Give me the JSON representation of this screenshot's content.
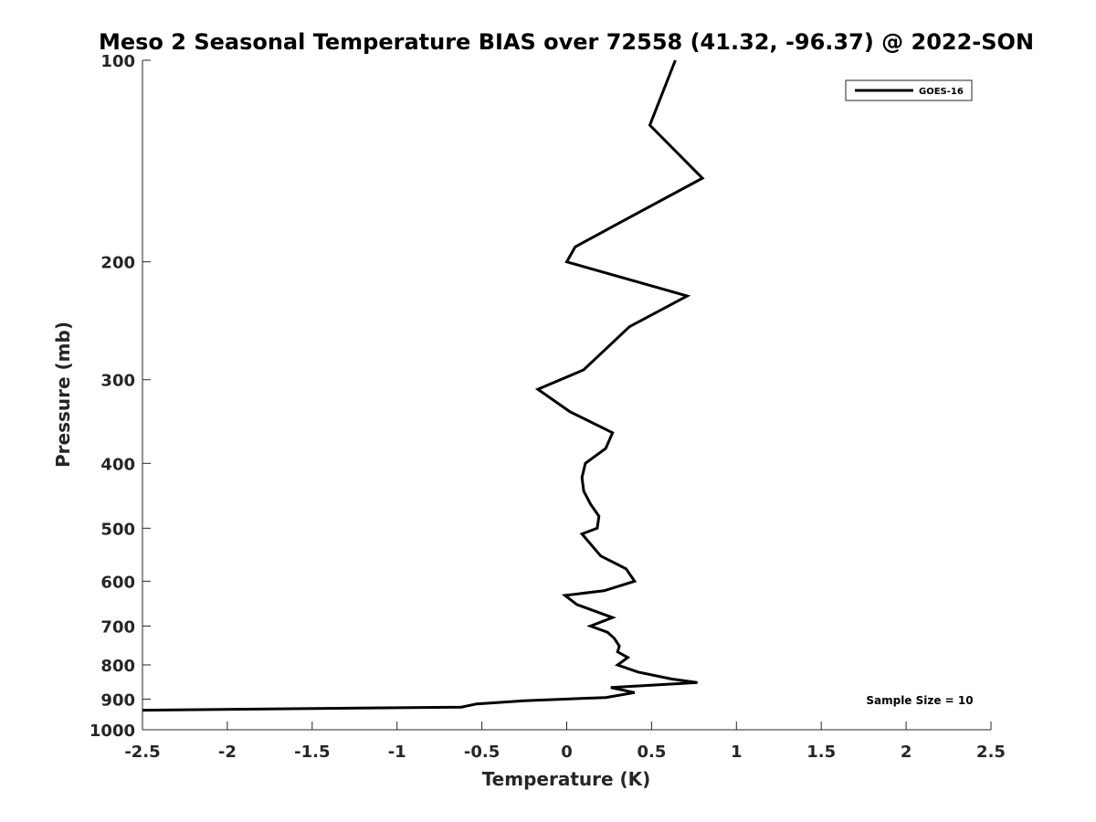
{
  "chart_data": {
    "type": "line",
    "title": "Meso 2 Seasonal Temperature BIAS over 72558 (41.32, -96.37) @ 2022-SON",
    "xlabel": "Temperature (K)",
    "ylabel": "Pressure (mb)",
    "xlim": [
      -2.5,
      2.5
    ],
    "ylim": [
      100,
      1000
    ],
    "y_scale": "log",
    "y_reversed": true,
    "x_ticks": [
      "-2.5",
      "-2",
      "-1.5",
      "-1",
      "-0.5",
      "0",
      "0.5",
      "1",
      "1.5",
      "2",
      "2.5"
    ],
    "x_tick_values": [
      -2.5,
      -2,
      -1.5,
      -1,
      -0.5,
      0,
      0.5,
      1,
      1.5,
      2,
      2.5
    ],
    "y_ticks": [
      "100",
      "200",
      "300",
      "400",
      "500",
      "600",
      "700",
      "800",
      "900",
      "1000"
    ],
    "y_tick_values": [
      100,
      200,
      300,
      400,
      500,
      600,
      700,
      800,
      900,
      1000
    ],
    "grid": false,
    "legend": {
      "position": "top-right",
      "entries": [
        "GOES-16"
      ]
    },
    "annotation": "Sample Size = 10",
    "series": [
      {
        "name": "GOES-16",
        "color": "#000000",
        "points": [
          [
            0.64,
            100
          ],
          [
            0.49,
            125
          ],
          [
            0.8,
            150
          ],
          [
            0.31,
            175
          ],
          [
            0.05,
            190
          ],
          [
            0.0,
            200
          ],
          [
            0.71,
            225
          ],
          [
            0.37,
            250
          ],
          [
            0.23,
            270
          ],
          [
            0.1,
            290
          ],
          [
            -0.17,
            310
          ],
          [
            0.02,
            335
          ],
          [
            0.27,
            360
          ],
          [
            0.23,
            380
          ],
          [
            0.11,
            400
          ],
          [
            0.09,
            420
          ],
          [
            0.1,
            440
          ],
          [
            0.14,
            460
          ],
          [
            0.19,
            480
          ],
          [
            0.18,
            500
          ],
          [
            0.09,
            510
          ],
          [
            0.2,
            550
          ],
          [
            0.35,
            575
          ],
          [
            0.4,
            600
          ],
          [
            0.22,
            620
          ],
          [
            -0.01,
            630
          ],
          [
            0.06,
            650
          ],
          [
            0.27,
            680
          ],
          [
            0.14,
            700
          ],
          [
            0.24,
            715
          ],
          [
            0.28,
            730
          ],
          [
            0.31,
            750
          ],
          [
            0.3,
            765
          ],
          [
            0.36,
            780
          ],
          [
            0.3,
            800
          ],
          [
            0.42,
            820
          ],
          [
            0.62,
            840
          ],
          [
            0.77,
            850
          ],
          [
            0.26,
            865
          ],
          [
            0.4,
            880
          ],
          [
            0.23,
            895
          ],
          [
            -0.25,
            905
          ],
          [
            -0.53,
            915
          ],
          [
            -0.62,
            925
          ],
          [
            -2.5,
            935
          ]
        ]
      }
    ]
  }
}
